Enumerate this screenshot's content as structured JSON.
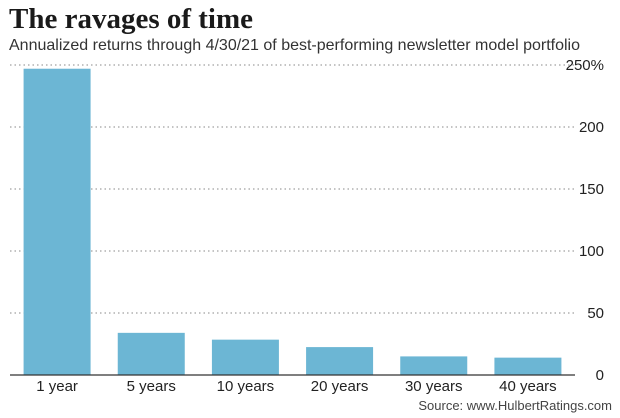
{
  "header": {
    "title": "The ravages of time",
    "subtitle": "Annualized returns through 4/30/21 of best-performing newsletter model portfolio"
  },
  "source": "Source: www.HulbertRatings.com",
  "colors": {
    "bar": "#6cb6d4",
    "grid": "#888888",
    "axis": "#333333"
  },
  "chart_data": {
    "type": "bar",
    "title": "The ravages of time",
    "subtitle": "Annualized returns through 4/30/21 of best-performing newsletter model portfolio",
    "xlabel": "",
    "ylabel": "",
    "categories": [
      "1 year",
      "5 years",
      "10 years",
      "20 years",
      "30 years",
      "40 years"
    ],
    "values": [
      247,
      34,
      28.5,
      22.5,
      15,
      14
    ],
    "ylim": [
      0,
      250
    ],
    "yticks": [
      0,
      50,
      100,
      150,
      200,
      250
    ],
    "ytick_labels": [
      "0",
      "50",
      "100",
      "150",
      "200",
      "250%"
    ],
    "grid": true,
    "y_axis_side": "right"
  }
}
